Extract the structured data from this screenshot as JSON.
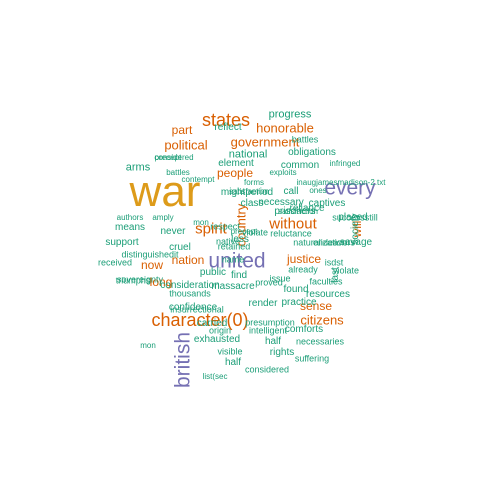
{
  "colors": {
    "gold": "#dd9b1a",
    "orange": "#d95f02",
    "green": "#1b9e77",
    "purple": "#7570b3"
  },
  "words": [
    "war",
    "united",
    "every",
    "character(0)",
    "british",
    "states",
    "honorable",
    "without",
    "spirit",
    "government",
    "political",
    "part",
    "people",
    "citizens",
    "justice",
    "sense",
    "nation",
    "long",
    "now",
    "country",
    "last",
    "progress",
    "reflect",
    "national",
    "arms",
    "obligations",
    "common",
    "element",
    "considered",
    "will",
    "mightperiod",
    "necessary",
    "call",
    "captives",
    "placed",
    "class",
    "prisoners",
    "carried",
    "means",
    "never",
    "support",
    "society",
    "savage",
    "less",
    "cruel",
    "reliance",
    "public",
    "find",
    "consideration",
    "massacre",
    "found",
    "practice",
    "resources",
    "confidence",
    "render",
    "comforts",
    "exhausted",
    "half",
    "half",
    "rights",
    "battles",
    "respect",
    "name",
    "native",
    "violate",
    "reluctance",
    "isdst",
    "endeavors",
    "violate",
    "already",
    "issue",
    "faculties",
    "successstill",
    "naturalization",
    "proved",
    "retained",
    "distinguishedit",
    "received",
    "triumphs",
    "sovereignty",
    "thousands",
    "insurrectional",
    "origin",
    "presumption",
    "intelligent",
    "necessaries",
    "suffering",
    "visible",
    "considered",
    "list(sec",
    "contempt",
    "precept",
    "battles",
    "forms",
    "satisfaction",
    "exploits",
    "infringed",
    "inaugjamesmadison-2.txt",
    "ones",
    "amply",
    "authors",
    "mon",
    "satisfaction",
    "precept",
    "mon"
  ]
}
